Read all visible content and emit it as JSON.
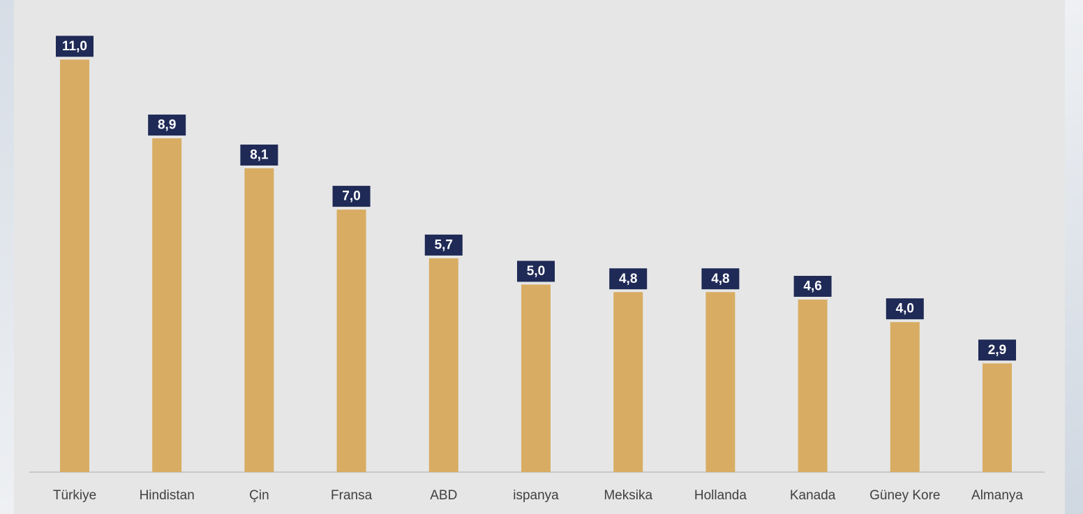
{
  "chart_data": {
    "type": "bar",
    "categories": [
      "Türkiye",
      "Hindistan",
      "Çin",
      "Fransa",
      "ABD",
      "ispanya",
      "Meksika",
      "Hollanda",
      "Kanada",
      "Güney Kore",
      "Almanya"
    ],
    "values": [
      11.0,
      8.9,
      8.1,
      7.0,
      5.7,
      5.0,
      4.8,
      4.8,
      4.6,
      4.0,
      2.9
    ],
    "value_labels": [
      "11,0",
      "8,9",
      "8,1",
      "7,0",
      "5,7",
      "5,0",
      "4,8",
      "4,8",
      "4,6",
      "4,0",
      "2,9"
    ],
    "color": "#d8ad63",
    "label_color": "#1f2a56"
  }
}
